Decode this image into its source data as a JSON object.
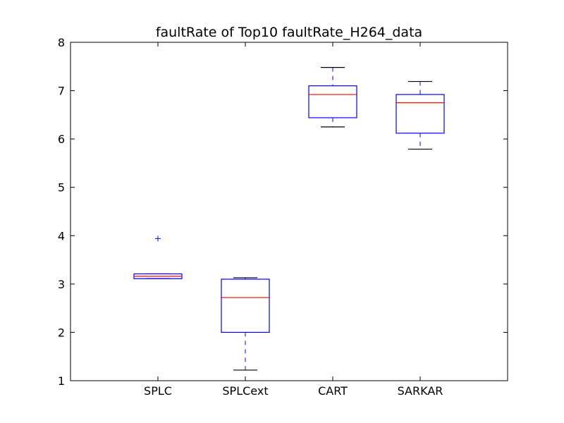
{
  "chart_data": {
    "type": "box",
    "title": "faultRate of Top10 faultRate_H264_data",
    "xlabel": "",
    "ylabel": "",
    "ylim": [
      1,
      8
    ],
    "yticks": [
      "1",
      "2",
      "3",
      "4",
      "5",
      "6",
      "7",
      "8"
    ],
    "categories": [
      "SPLC",
      "SPLCext",
      "CART",
      "SARKAR"
    ],
    "boxes": [
      {
        "name": "SPLC",
        "whisker_low": 3.11,
        "q1": 3.11,
        "median": 3.16,
        "q3": 3.21,
        "whisker_high": 3.21,
        "outliers": [
          3.94
        ]
      },
      {
        "name": "SPLCext",
        "whisker_low": 1.22,
        "q1": 2.0,
        "median": 2.72,
        "q3": 3.1,
        "whisker_high": 3.13,
        "outliers": []
      },
      {
        "name": "CART",
        "whisker_low": 6.25,
        "q1": 6.44,
        "median": 6.92,
        "q3": 7.1,
        "whisker_high": 7.48,
        "outliers": []
      },
      {
        "name": "SARKAR",
        "whisker_low": 5.79,
        "q1": 6.12,
        "median": 6.75,
        "q3": 6.92,
        "whisker_high": 7.19,
        "outliers": []
      }
    ],
    "grid": false,
    "colors": {
      "box": "#0000ff",
      "median": "#ff0000",
      "whisker_cap": "#000000",
      "outlier": "#0000ff"
    }
  }
}
